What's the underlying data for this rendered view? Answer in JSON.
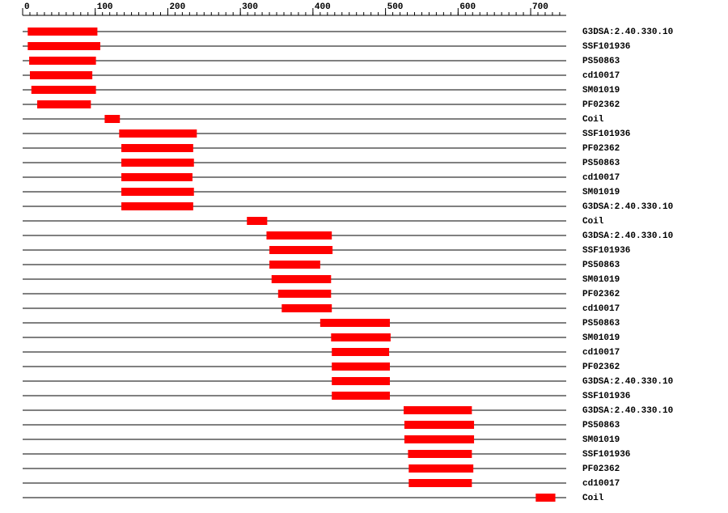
{
  "chart_data": {
    "type": "range",
    "xlim": [
      0,
      749
    ],
    "xticks": [
      0,
      100,
      200,
      300,
      400,
      500,
      600,
      700
    ],
    "xminorticks": [
      0,
      10,
      20,
      30,
      40,
      50,
      60,
      70,
      80,
      90,
      100,
      110,
      120,
      130,
      140,
      150,
      160,
      170,
      180,
      190,
      200,
      210,
      220,
      230,
      240,
      250,
      260,
      270,
      280,
      290,
      300,
      310,
      320,
      330,
      340,
      350,
      360,
      370,
      380,
      390,
      400,
      410,
      420,
      430,
      440,
      450,
      460,
      470,
      480,
      490,
      500,
      510,
      520,
      530,
      540,
      550,
      560,
      570,
      580,
      590,
      600,
      610,
      620,
      630,
      640,
      650,
      660,
      670,
      680,
      690,
      700,
      710,
      720,
      730,
      740
    ],
    "color": "#ff0000",
    "rows": [
      {
        "label": "G3DSA:2.40.330.10",
        "start": 7,
        "end": 103
      },
      {
        "label": "SSF101936",
        "start": 7,
        "end": 107
      },
      {
        "label": "PS50863",
        "start": 9,
        "end": 101
      },
      {
        "label": "cd10017",
        "start": 10,
        "end": 96
      },
      {
        "label": "SM01019",
        "start": 12,
        "end": 101
      },
      {
        "label": "PF02362",
        "start": 20,
        "end": 94
      },
      {
        "label": "Coil",
        "start": 113,
        "end": 134
      },
      {
        "label": "SSF101936",
        "start": 133,
        "end": 240
      },
      {
        "label": "PF02362",
        "start": 136,
        "end": 235
      },
      {
        "label": "PS50863",
        "start": 136,
        "end": 236
      },
      {
        "label": "cd10017",
        "start": 136,
        "end": 234
      },
      {
        "label": "SM01019",
        "start": 136,
        "end": 236
      },
      {
        "label": "G3DSA:2.40.330.10",
        "start": 136,
        "end": 235
      },
      {
        "label": "Coil",
        "start": 309,
        "end": 337
      },
      {
        "label": "G3DSA:2.40.330.10",
        "start": 336,
        "end": 426
      },
      {
        "label": "SSF101936",
        "start": 340,
        "end": 427
      },
      {
        "label": "PS50863",
        "start": 340,
        "end": 410
      },
      {
        "label": "SM01019",
        "start": 343,
        "end": 425
      },
      {
        "label": "PF02362",
        "start": 352,
        "end": 425
      },
      {
        "label": "cd10017",
        "start": 357,
        "end": 426
      },
      {
        "label": "PS50863",
        "start": 410,
        "end": 506
      },
      {
        "label": "SM01019",
        "start": 425,
        "end": 507
      },
      {
        "label": "cd10017",
        "start": 426,
        "end": 505
      },
      {
        "label": "PF02362",
        "start": 426,
        "end": 506
      },
      {
        "label": "G3DSA:2.40.330.10",
        "start": 426,
        "end": 506
      },
      {
        "label": "SSF101936",
        "start": 426,
        "end": 506
      },
      {
        "label": "G3DSA:2.40.330.10",
        "start": 525,
        "end": 619
      },
      {
        "label": "PS50863",
        "start": 526,
        "end": 622
      },
      {
        "label": "SM01019",
        "start": 526,
        "end": 622
      },
      {
        "label": "SSF101936",
        "start": 531,
        "end": 619
      },
      {
        "label": "PF02362",
        "start": 532,
        "end": 621
      },
      {
        "label": "cd10017",
        "start": 532,
        "end": 619
      },
      {
        "label": "Coil",
        "start": 707,
        "end": 734
      }
    ]
  }
}
